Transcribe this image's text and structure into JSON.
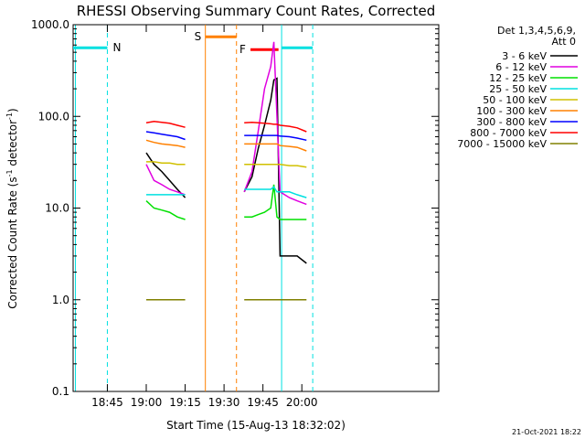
{
  "chart_data": {
    "type": "line",
    "title": "RHESSI Observing Summary Count Rates, Corrected",
    "xlabel": "Start Time (15-Aug-13 18:32:02)",
    "ylabel_main": "Corrected Count Rate (s",
    "ylabel_sup1": "-1",
    "ylabel_mid": " detector",
    "ylabel_sup2": "-1",
    "ylabel_end": ")",
    "y_scale": "log",
    "ylim": [
      0.1,
      1000
    ],
    "xlim_minutes": [
      18.53,
      20.88
    ],
    "x_ticks": [
      {
        "label": "18:45",
        "t": 18.75
      },
      {
        "label": "19:00",
        "t": 19.0
      },
      {
        "label": "19:15",
        "t": 19.25
      },
      {
        "label": "19:30",
        "t": 19.5
      },
      {
        "label": "19:45",
        "t": 19.75
      },
      {
        "label": "20:00",
        "t": 20.0
      }
    ],
    "y_ticks": [
      {
        "label": "1000.0",
        "v": 1000
      },
      {
        "label": "100.0",
        "v": 100
      },
      {
        "label": "10.0",
        "v": 10
      },
      {
        "label": "1.0",
        "v": 1
      },
      {
        "label": "0.1",
        "v": 0.1
      }
    ],
    "legend": {
      "header1": "Det 1,3,4,5,6,9,",
      "header2": "Att 0",
      "placement": "right"
    },
    "series": [
      {
        "name": "3 - 6 keV",
        "color": "#000000",
        "seg1": [
          [
            19.0,
            40
          ],
          [
            19.05,
            30
          ],
          [
            19.1,
            25
          ],
          [
            19.15,
            20
          ],
          [
            19.2,
            16
          ],
          [
            19.25,
            13
          ]
        ],
        "seg2": [
          [
            19.63,
            15
          ],
          [
            19.68,
            22
          ],
          [
            19.72,
            45
          ],
          [
            19.76,
            80
          ],
          [
            19.8,
            150
          ],
          [
            19.82,
            250
          ],
          [
            19.84,
            260
          ],
          [
            19.86,
            3
          ],
          [
            19.92,
            3
          ],
          [
            19.97,
            3
          ],
          [
            20.03,
            2.5
          ]
        ]
      },
      {
        "name": "6 - 12 keV",
        "color": "#e000e0",
        "seg1": [
          [
            19.0,
            30
          ],
          [
            19.05,
            20
          ],
          [
            19.1,
            18
          ],
          [
            19.15,
            16
          ],
          [
            19.2,
            15
          ],
          [
            19.25,
            14
          ]
        ],
        "seg2": [
          [
            19.63,
            15
          ],
          [
            19.68,
            25
          ],
          [
            19.72,
            70
          ],
          [
            19.76,
            200
          ],
          [
            19.8,
            350
          ],
          [
            19.82,
            650
          ],
          [
            19.84,
            100
          ],
          [
            19.86,
            15
          ],
          [
            19.92,
            13
          ],
          [
            19.97,
            12
          ],
          [
            20.03,
            11
          ]
        ]
      },
      {
        "name": "12 - 25 keV",
        "color": "#00e000",
        "seg1": [
          [
            19.0,
            12
          ],
          [
            19.05,
            10
          ],
          [
            19.1,
            9.5
          ],
          [
            19.15,
            9
          ],
          [
            19.2,
            8
          ],
          [
            19.25,
            7.5
          ]
        ],
        "seg2": [
          [
            19.63,
            8
          ],
          [
            19.68,
            8
          ],
          [
            19.72,
            8.5
          ],
          [
            19.76,
            9
          ],
          [
            19.8,
            10
          ],
          [
            19.82,
            18
          ],
          [
            19.84,
            8
          ],
          [
            19.86,
            7.5
          ],
          [
            19.92,
            7.5
          ],
          [
            19.97,
            7.5
          ],
          [
            20.03,
            7.5
          ]
        ]
      },
      {
        "name": "25 - 50 keV",
        "color": "#00e0e0",
        "seg1": [
          [
            19.0,
            14
          ],
          [
            19.05,
            14
          ],
          [
            19.1,
            14
          ],
          [
            19.15,
            14
          ],
          [
            19.2,
            14
          ],
          [
            19.25,
            14
          ]
        ],
        "seg2": [
          [
            19.63,
            16
          ],
          [
            19.68,
            16
          ],
          [
            19.72,
            16
          ],
          [
            19.76,
            16
          ],
          [
            19.8,
            16
          ],
          [
            19.82,
            17
          ],
          [
            19.84,
            15
          ],
          [
            19.86,
            15
          ],
          [
            19.92,
            15
          ],
          [
            19.97,
            14
          ],
          [
            20.03,
            13
          ]
        ]
      },
      {
        "name": "50 - 100 keV",
        "color": "#d0c000",
        "seg1": [
          [
            19.0,
            32
          ],
          [
            19.05,
            32
          ],
          [
            19.1,
            31
          ],
          [
            19.15,
            31
          ],
          [
            19.2,
            30
          ],
          [
            19.25,
            30
          ]
        ],
        "seg2": [
          [
            19.63,
            30
          ],
          [
            19.68,
            30
          ],
          [
            19.72,
            30
          ],
          [
            19.76,
            30
          ],
          [
            19.8,
            30
          ],
          [
            19.82,
            30
          ],
          [
            19.84,
            30
          ],
          [
            19.86,
            30
          ],
          [
            19.92,
            29
          ],
          [
            19.97,
            29
          ],
          [
            20.03,
            28
          ]
        ]
      },
      {
        "name": "100 - 300 keV",
        "color": "#ff8000",
        "seg1": [
          [
            19.0,
            55
          ],
          [
            19.05,
            52
          ],
          [
            19.1,
            50
          ],
          [
            19.15,
            49
          ],
          [
            19.2,
            48
          ],
          [
            19.25,
            46
          ]
        ],
        "seg2": [
          [
            19.63,
            50
          ],
          [
            19.68,
            50
          ],
          [
            19.72,
            50
          ],
          [
            19.76,
            50
          ],
          [
            19.8,
            50
          ],
          [
            19.82,
            50
          ],
          [
            19.84,
            50
          ],
          [
            19.86,
            48
          ],
          [
            19.92,
            47
          ],
          [
            19.97,
            46
          ],
          [
            20.03,
            42
          ]
        ]
      },
      {
        "name": "300 - 800 keV",
        "color": "#0000ff",
        "seg1": [
          [
            19.0,
            68
          ],
          [
            19.05,
            66
          ],
          [
            19.1,
            64
          ],
          [
            19.15,
            62
          ],
          [
            19.2,
            60
          ],
          [
            19.25,
            56
          ]
        ],
        "seg2": [
          [
            19.63,
            62
          ],
          [
            19.68,
            62
          ],
          [
            19.72,
            62
          ],
          [
            19.76,
            62
          ],
          [
            19.8,
            62
          ],
          [
            19.82,
            62
          ],
          [
            19.84,
            62
          ],
          [
            19.86,
            61
          ],
          [
            19.92,
            60
          ],
          [
            19.97,
            58
          ],
          [
            20.03,
            55
          ]
        ]
      },
      {
        "name": "800 - 7000 keV",
        "color": "#ff0000",
        "seg1": [
          [
            19.0,
            85
          ],
          [
            19.05,
            88
          ],
          [
            19.1,
            86
          ],
          [
            19.15,
            84
          ],
          [
            19.2,
            80
          ],
          [
            19.25,
            76
          ]
        ],
        "seg2": [
          [
            19.63,
            85
          ],
          [
            19.68,
            86
          ],
          [
            19.72,
            85
          ],
          [
            19.76,
            84
          ],
          [
            19.8,
            83
          ],
          [
            19.82,
            82
          ],
          [
            19.84,
            82
          ],
          [
            19.86,
            80
          ],
          [
            19.92,
            78
          ],
          [
            19.97,
            75
          ],
          [
            20.03,
            68
          ]
        ]
      },
      {
        "name": "7000 - 15000 keV",
        "color": "#808000",
        "seg1": [
          [
            19.0,
            1.0
          ],
          [
            19.25,
            1.0
          ]
        ],
        "seg2": [
          [
            19.63,
            1.0
          ],
          [
            20.03,
            1.0
          ]
        ]
      }
    ],
    "ranges": [
      {
        "label": "N",
        "color": "#00e0e0",
        "t_start": 18.53,
        "t_end": 18.75
      },
      {
        "label": "S",
        "color": "#ff8000",
        "t_start": 19.38,
        "t_end": 19.58
      },
      {
        "label": "F",
        "color": "#ff0000",
        "t_start": 19.67,
        "t_end": 19.85
      },
      {
        "label": "",
        "color": "#00e0e0",
        "t_start": 19.87,
        "t_end": 20.07
      }
    ],
    "vlines": [
      {
        "t": 18.545,
        "color": "#00e0e0",
        "style": "solid"
      },
      {
        "t": 18.75,
        "color": "#00e0e0",
        "style": "dashed"
      },
      {
        "t": 19.38,
        "color": "#ff8000",
        "style": "solid"
      },
      {
        "t": 19.58,
        "color": "#ff8000",
        "style": "dashed"
      },
      {
        "t": 19.87,
        "color": "#00e0e0",
        "style": "solid"
      },
      {
        "t": 20.07,
        "color": "#00e0e0",
        "style": "dashed"
      }
    ],
    "timestamp": "21-Oct-2021 18:22"
  }
}
